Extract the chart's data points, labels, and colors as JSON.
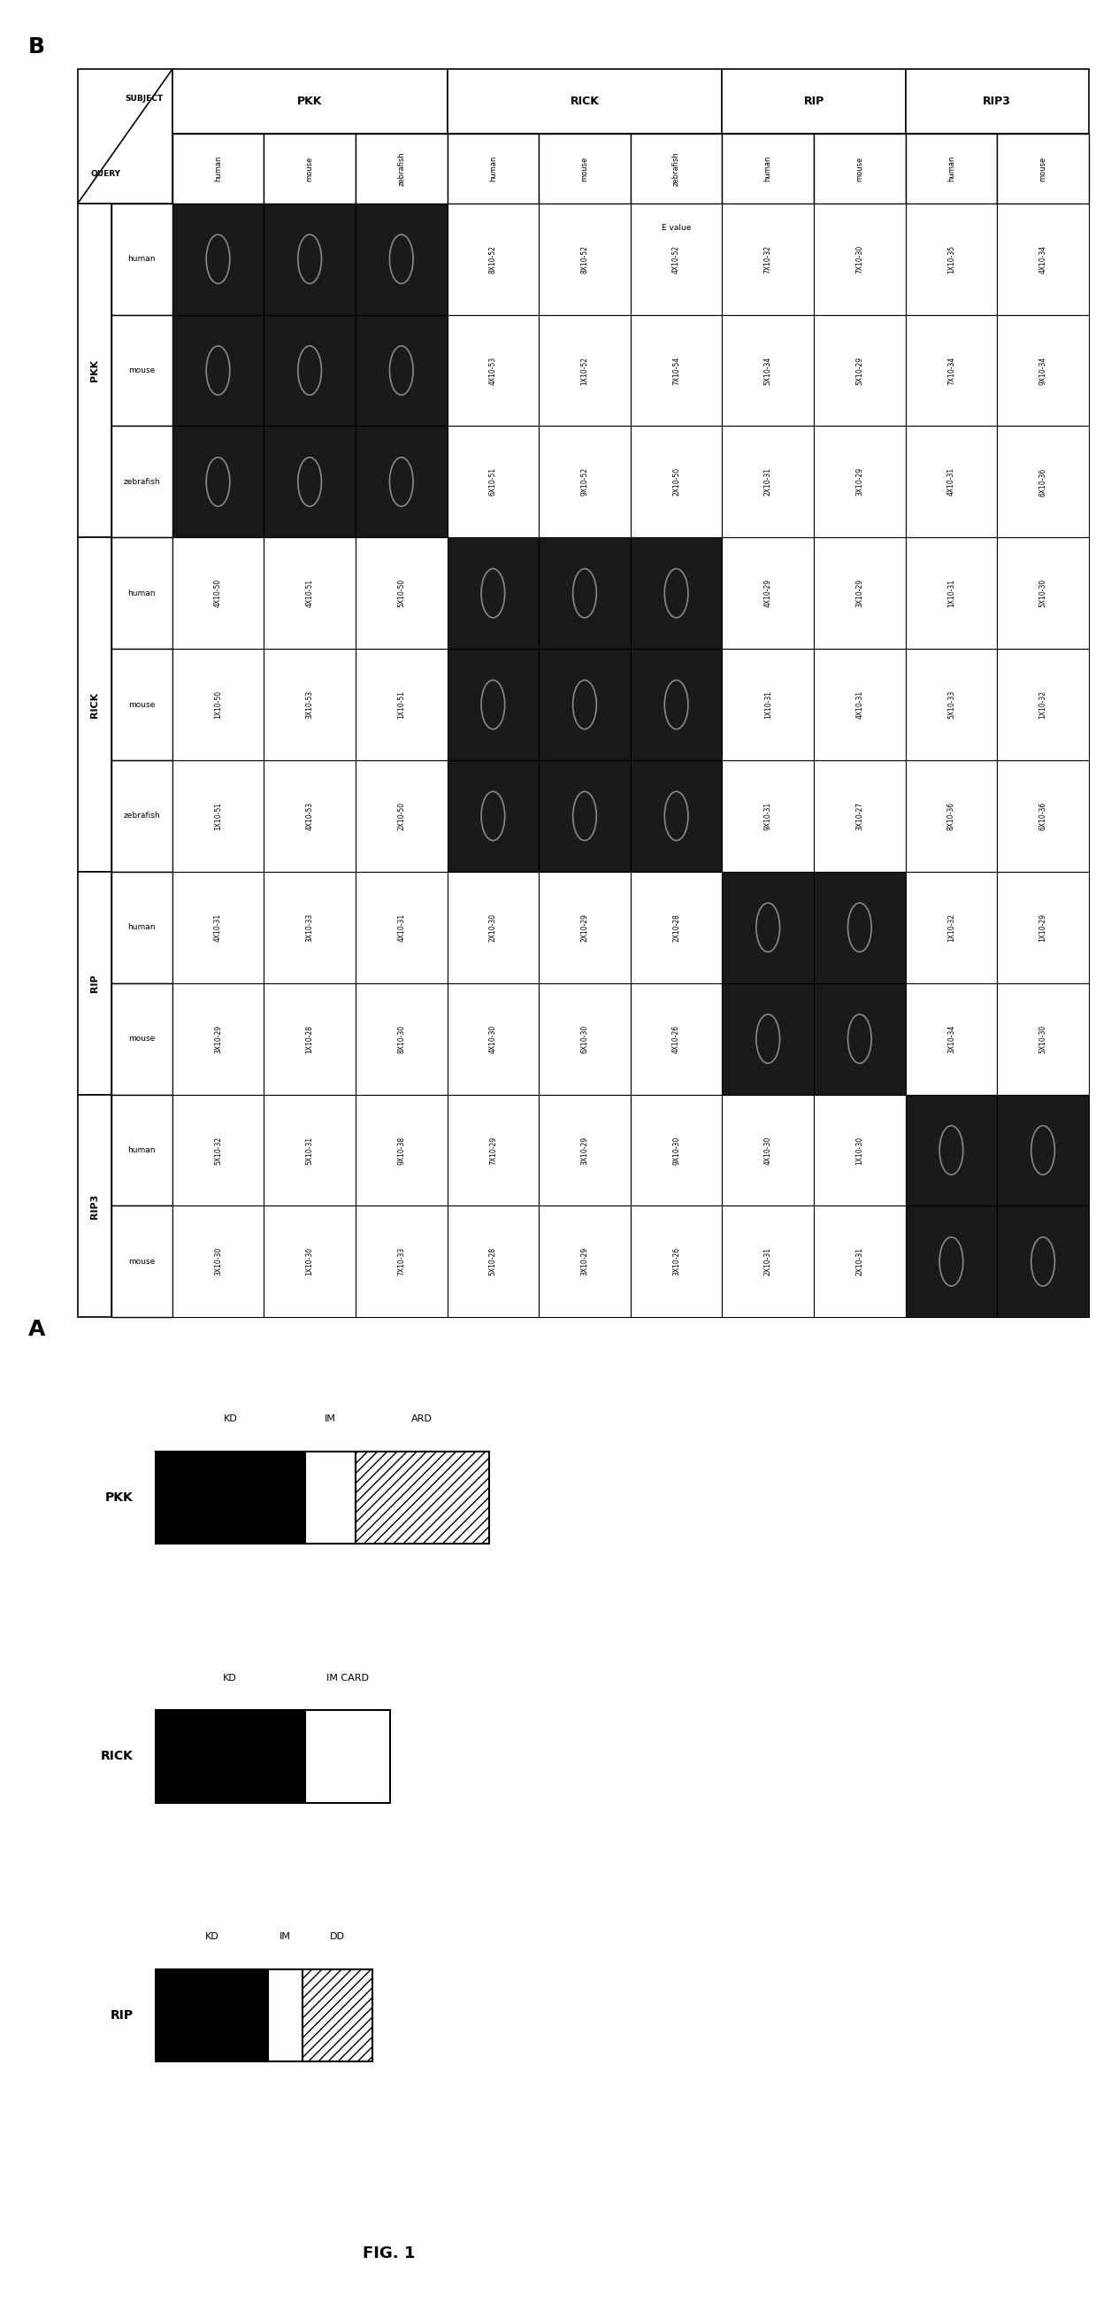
{
  "fig_width": 12.56,
  "fig_height": 26.11,
  "panel_A_label": "A",
  "panel_B_label": "B",
  "fig_label": "FIG. 1",
  "query_items": [
    [
      "PKK",
      "human"
    ],
    [
      "PKK",
      "mouse"
    ],
    [
      "PKK",
      "zebrafish"
    ],
    [
      "RICK",
      "human"
    ],
    [
      "RICK",
      "mouse"
    ],
    [
      "RICK",
      "zebrafish"
    ],
    [
      "RIP",
      "human"
    ],
    [
      "RIP",
      "mouse"
    ],
    [
      "RIP3",
      "human"
    ],
    [
      "RIP3",
      "mouse"
    ]
  ],
  "subject_items": [
    [
      "PKK",
      "human"
    ],
    [
      "PKK",
      "mouse"
    ],
    [
      "PKK",
      "zebrafish"
    ],
    [
      "RICK",
      "human"
    ],
    [
      "RICK",
      "mouse"
    ],
    [
      "RICK",
      "zebrafish"
    ],
    [
      "RIP",
      "human"
    ],
    [
      "RIP",
      "mouse"
    ],
    [
      "RIP3",
      "human"
    ],
    [
      "RIP3",
      "mouse"
    ]
  ],
  "data": {
    "PKK_human": {
      "PKK_human": "0",
      "PKK_mouse": "0",
      "PKK_zebrafish": "0",
      "RICK_human": "4X10-50",
      "RICK_mouse": "1X10-50",
      "RICK_zebrafish": "1X10-51",
      "RIP_human": "4X10-31",
      "RIP_mouse": "3X10-29",
      "RIP3_human": "5X10-32",
      "RIP3_mouse": "3X10-30"
    },
    "PKK_mouse": {
      "PKK_human": "0",
      "PKK_mouse": "0",
      "PKK_zebrafish": "0",
      "RICK_human": "4X10-51",
      "RICK_mouse": "3X10-53",
      "RICK_zebrafish": "4X10-53",
      "RIP_human": "3X10-33",
      "RIP_mouse": "1X10-28",
      "RIP3_human": "5X10-31",
      "RIP3_mouse": "1X10-30"
    },
    "PKK_zebrafish": {
      "PKK_human": "0",
      "PKK_mouse": "0",
      "PKK_zebrafish": "0",
      "RICK_human": "5X10-50",
      "RICK_mouse": "1X10-51",
      "RICK_zebrafish": "2X10-50",
      "RIP_human": "4X10-31",
      "RIP_mouse": "8X10-30",
      "RIP3_human": "9X10-38",
      "RIP3_mouse": "7X10-33"
    },
    "RICK_human": {
      "PKK_human": "8X10-52",
      "PKK_mouse": "4X10-53",
      "PKK_zebrafish": "6X10-51",
      "RICK_human": "0",
      "RICK_mouse": "0",
      "RICK_zebrafish": "0",
      "RIP_human": "2X10-30",
      "RIP_mouse": "4X10-30",
      "RIP3_human": "7X10-29",
      "RIP3_mouse": "5X10-28"
    },
    "RICK_mouse": {
      "PKK_human": "8X10-52",
      "PKK_mouse": "1X10-52",
      "PKK_zebrafish": "9X10-52",
      "RICK_human": "0",
      "RICK_mouse": "0",
      "RICK_zebrafish": "0",
      "RIP_human": "2X10-29",
      "RIP_mouse": "6X10-30",
      "RIP3_human": "3X10-29",
      "RIP3_mouse": "3X10-29"
    },
    "RICK_zebrafish": {
      "PKK_human": "4X10-52",
      "PKK_mouse": "7X10-54",
      "PKK_zebrafish": "2X10-50",
      "RICK_human": "0",
      "RICK_mouse": "0",
      "RICK_zebrafish": "0",
      "RIP_human": "2X10-28",
      "RIP_mouse": "4X10-26",
      "RIP3_human": "9X10-30",
      "RIP3_mouse": "3X10-26"
    },
    "RIP_human": {
      "PKK_human": "7X10-32",
      "PKK_mouse": "5X10-34",
      "PKK_zebrafish": "2X10-31",
      "RICK_human": "4X10-29",
      "RICK_mouse": "1X10-31",
      "RICK_zebrafish": "9X10-31",
      "RIP_human": "0",
      "RIP_mouse": "0",
      "RIP3_human": "4X10-30",
      "RIP3_mouse": "2X10-31"
    },
    "RIP_mouse": {
      "PKK_human": "7X10-30",
      "PKK_mouse": "5X10-29",
      "PKK_zebrafish": "3X10-29",
      "RICK_human": "3X10-29",
      "RICK_mouse": "4X10-31",
      "RICK_zebrafish": "3X10-27",
      "RIP_human": "0",
      "RIP_mouse": "0",
      "RIP3_human": "1X10-30",
      "RIP3_mouse": "2X10-31"
    },
    "RIP3_human": {
      "PKK_human": "1X10-35",
      "PKK_mouse": "7X10-34",
      "PKK_zebrafish": "4X10-31",
      "RICK_human": "1X10-31",
      "RICK_mouse": "5X10-33",
      "RICK_zebrafish": "8X10-36",
      "RIP_human": "1X10-32",
      "RIP_mouse": "3X10-34",
      "RIP3_human": "0",
      "RIP3_mouse": "0"
    },
    "RIP3_mouse": {
      "PKK_human": "4X10-34",
      "PKK_mouse": "9X10-34",
      "PKK_zebrafish": "6X10-36",
      "RICK_human": "5X10-30",
      "RICK_mouse": "1X10-32",
      "RICK_zebrafish": "6X10-36",
      "RIP_human": "1X10-29",
      "RIP_mouse": "5X10-30",
      "RIP3_human": "0",
      "RIP3_mouse": "0"
    }
  },
  "dark_cells": [
    [
      "PKK_human",
      "PKK_human"
    ],
    [
      "PKK_human",
      "PKK_mouse"
    ],
    [
      "PKK_human",
      "PKK_zebrafish"
    ],
    [
      "PKK_mouse",
      "PKK_human"
    ],
    [
      "PKK_mouse",
      "PKK_mouse"
    ],
    [
      "PKK_mouse",
      "PKK_zebrafish"
    ],
    [
      "PKK_zebrafish",
      "PKK_human"
    ],
    [
      "PKK_zebrafish",
      "PKK_mouse"
    ],
    [
      "PKK_zebrafish",
      "PKK_zebrafish"
    ],
    [
      "RICK_human",
      "RICK_human"
    ],
    [
      "RICK_human",
      "RICK_mouse"
    ],
    [
      "RICK_human",
      "RICK_zebrafish"
    ],
    [
      "RICK_mouse",
      "RICK_human"
    ],
    [
      "RICK_mouse",
      "RICK_mouse"
    ],
    [
      "RICK_mouse",
      "RICK_zebrafish"
    ],
    [
      "RICK_zebrafish",
      "RICK_human"
    ],
    [
      "RICK_zebrafish",
      "RICK_mouse"
    ],
    [
      "RICK_zebrafish",
      "RICK_zebrafish"
    ],
    [
      "RIP_human",
      "RIP_human"
    ],
    [
      "RIP_human",
      "RIP_mouse"
    ],
    [
      "RIP_mouse",
      "RIP_human"
    ],
    [
      "RIP_mouse",
      "RIP_mouse"
    ],
    [
      "RIP3_human",
      "RIP3_human"
    ],
    [
      "RIP3_human",
      "RIP3_mouse"
    ],
    [
      "RIP3_mouse",
      "RIP3_human"
    ],
    [
      "RIP3_mouse",
      "RIP3_mouse"
    ]
  ],
  "query_groups": [
    {
      "name": "PKK",
      "span": 3,
      "color": "white"
    },
    {
      "name": "RICK",
      "span": 3,
      "color": "white"
    },
    {
      "name": "RIP",
      "span": 2,
      "color": "white"
    },
    {
      "name": "RIP3",
      "span": 2,
      "color": "white"
    }
  ],
  "subject_groups": [
    {
      "name": "PKK",
      "span": 3
    },
    {
      "name": "RICK",
      "span": 3
    },
    {
      "name": "RIP",
      "span": 2
    },
    {
      "name": "RIP3",
      "span": 2
    }
  ]
}
